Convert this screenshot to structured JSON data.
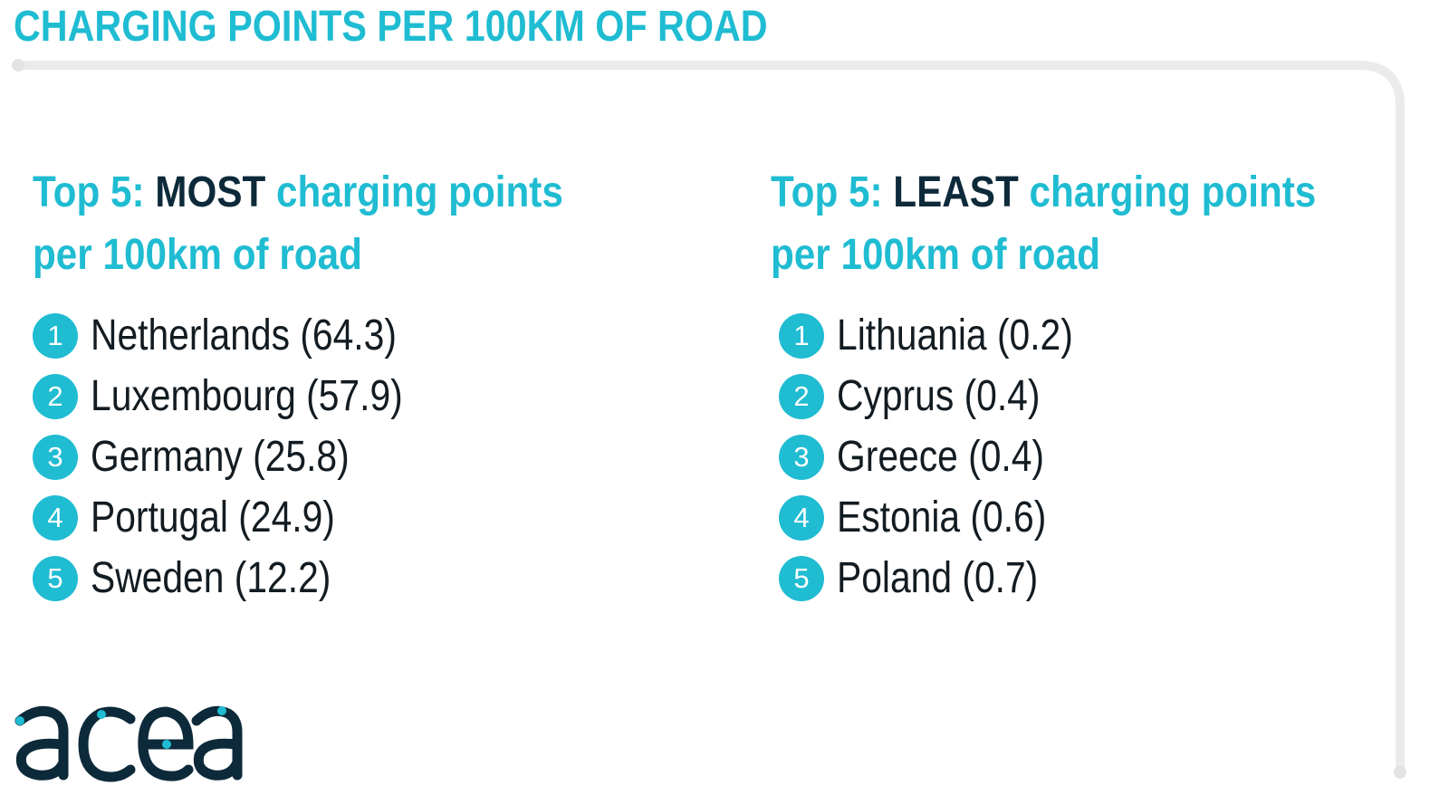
{
  "page_title": "CHARGING POINTS PER 100KM OF ROAD",
  "colors": {
    "accent": "#1fbcd2",
    "dark": "#0d2a3a",
    "text": "#121c22",
    "frame": "#ebebeb"
  },
  "most": {
    "heading_prefix": "Top 5: ",
    "heading_emph": "MOST",
    "heading_suffix_line1": " charging points",
    "heading_line2": "per 100km of road",
    "items": [
      {
        "rank": "1",
        "text": "Netherlands (64.3)"
      },
      {
        "rank": "2",
        "text": "Luxembourg (57.9)"
      },
      {
        "rank": "3",
        "text": "Germany (25.8)"
      },
      {
        "rank": "4",
        "text": "Portugal (24.9)"
      },
      {
        "rank": "5",
        "text": "Sweden (12.2)"
      }
    ]
  },
  "least": {
    "heading_prefix": "Top 5: ",
    "heading_emph": "LEAST",
    "heading_suffix_line1": " charging points",
    "heading_line2": "per 100km of road",
    "items": [
      {
        "rank": "1",
        "text": "Lithuania (0.2)"
      },
      {
        "rank": "2",
        "text": "Cyprus (0.4)"
      },
      {
        "rank": "3",
        "text": "Greece (0.4)"
      },
      {
        "rank": "4",
        "text": "Estonia (0.6)"
      },
      {
        "rank": "5",
        "text": "Poland (0.7)"
      }
    ]
  },
  "logo": {
    "text": "acea",
    "icon": "acea-logo"
  }
}
